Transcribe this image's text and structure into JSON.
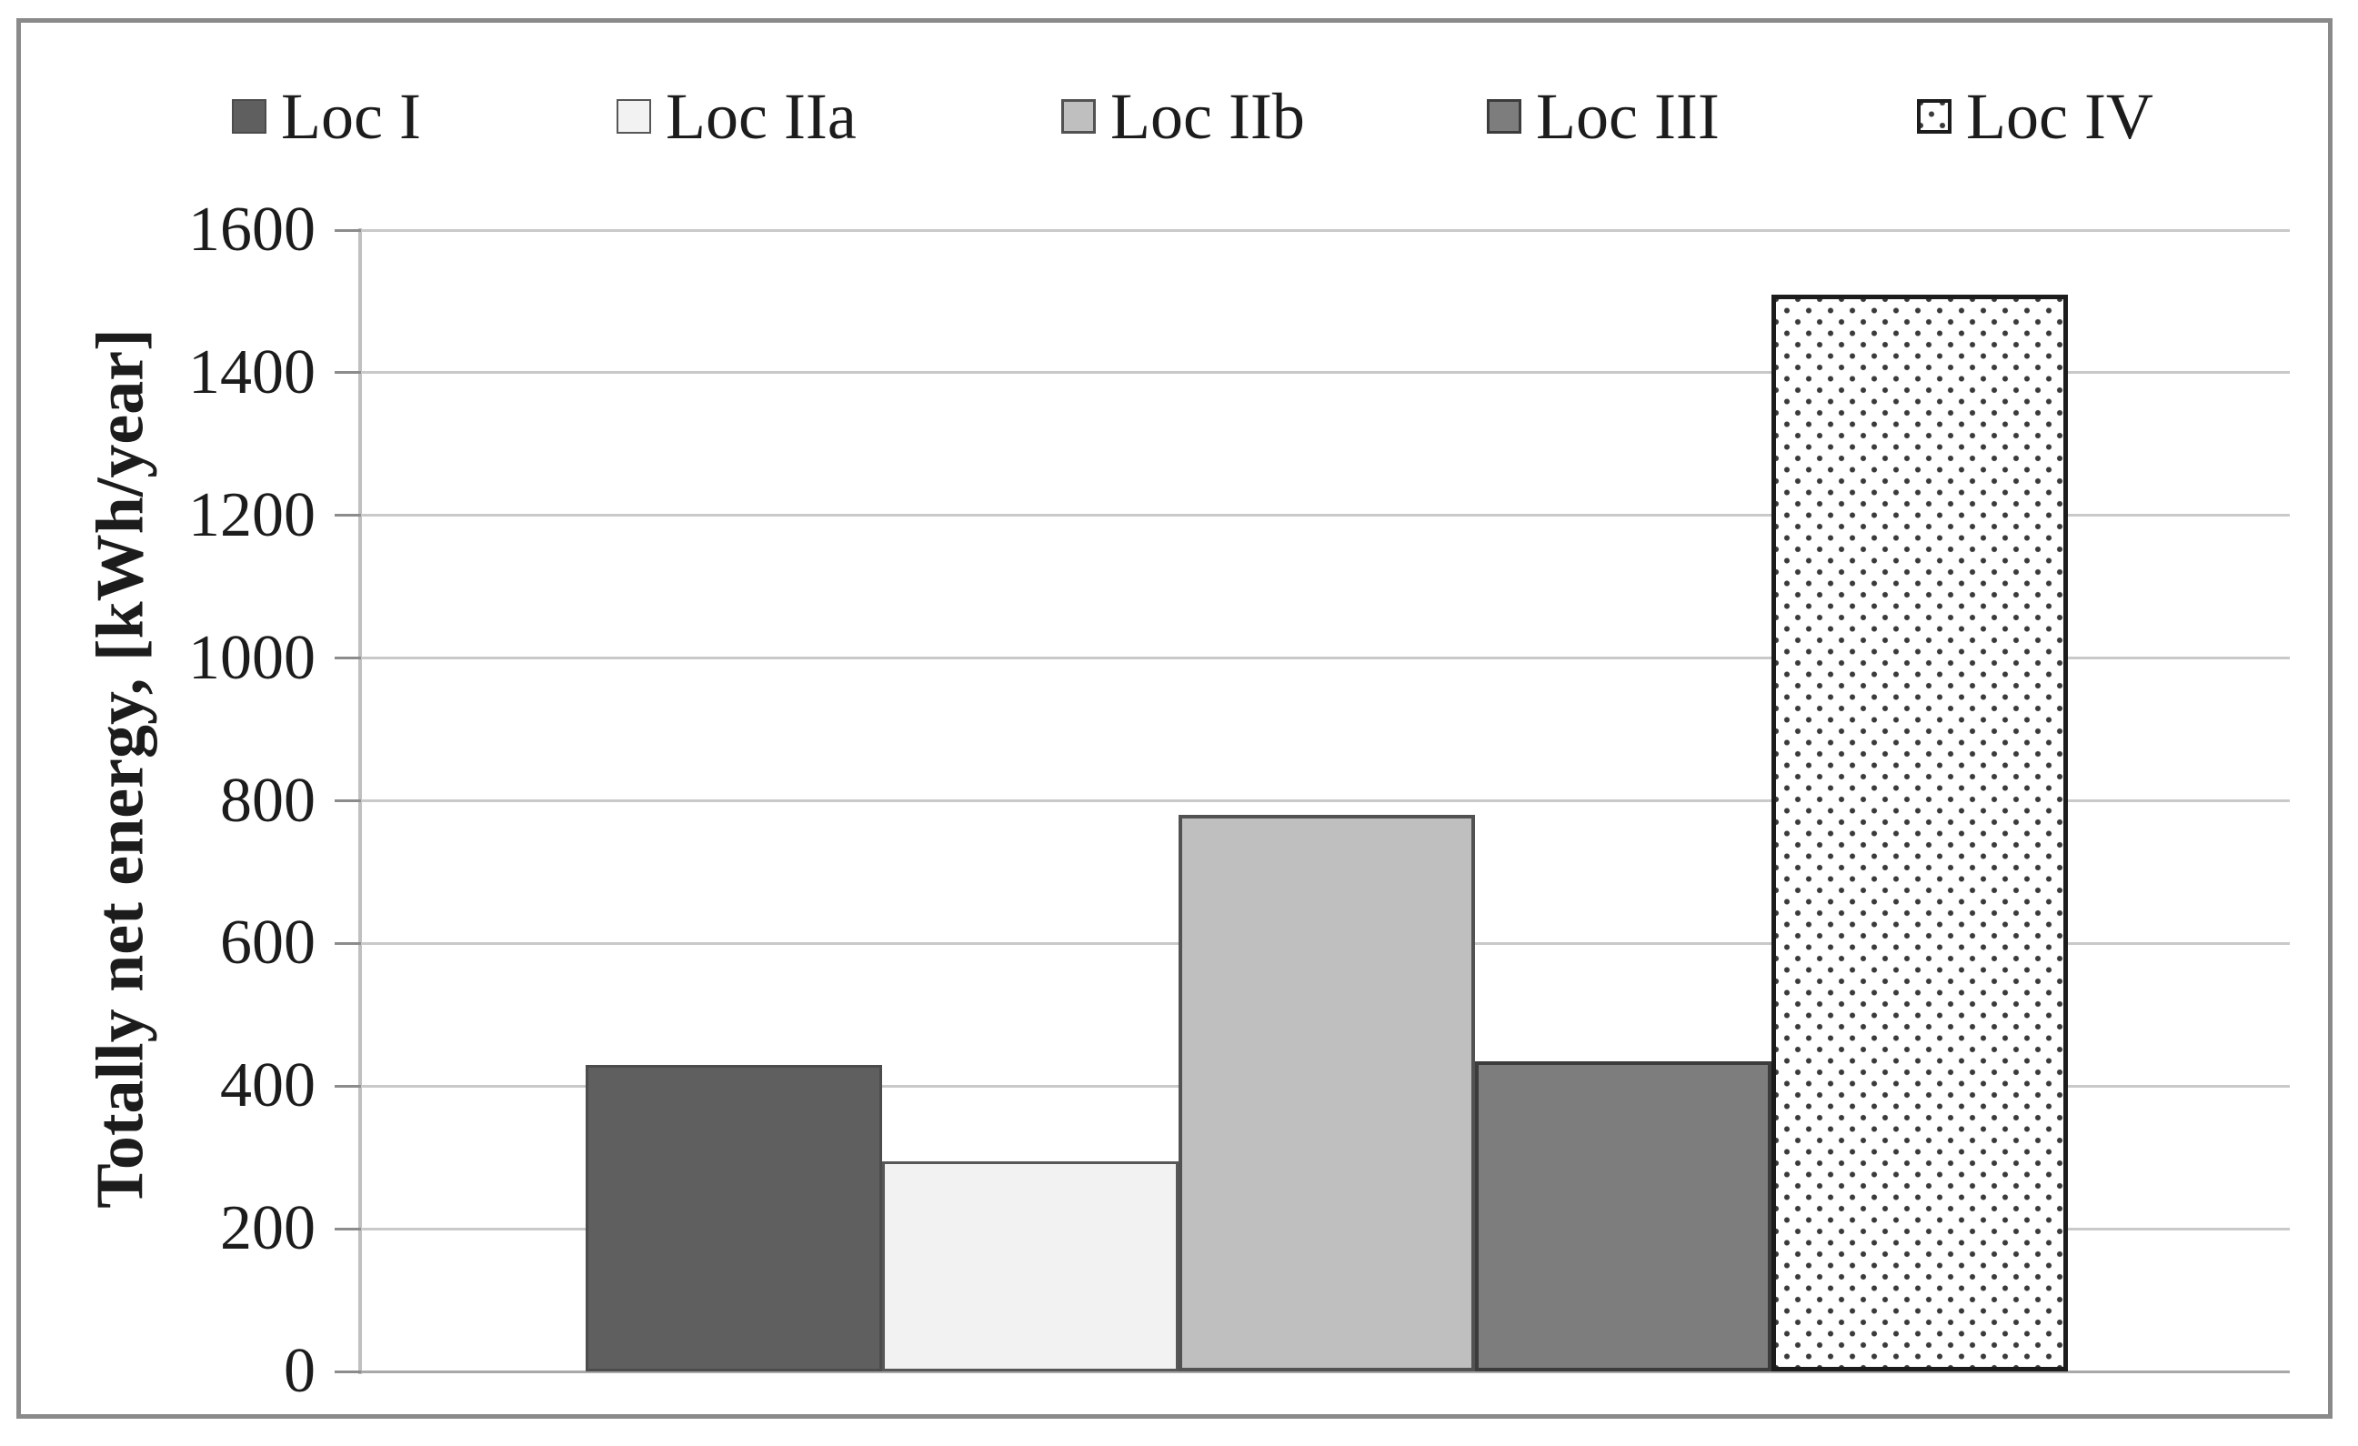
{
  "figure": {
    "border_color": "#8a8a8a",
    "background": "#ffffff"
  },
  "legend": {
    "position": "top",
    "items": [
      {
        "label": "Loc I",
        "series": "loc_i"
      },
      {
        "label": "Loc IIa",
        "series": "loc_iia"
      },
      {
        "label": "Loc IIb",
        "series": "loc_iib"
      },
      {
        "label": "Loc III",
        "series": "loc_iii"
      },
      {
        "label": "Loc IV",
        "series": "loc_iv"
      }
    ]
  },
  "y_axis": {
    "title": "Totally net energy, [kWh/year]",
    "tick_values": [
      0,
      200,
      400,
      600,
      800,
      1000,
      1200,
      1400,
      1600
    ]
  },
  "chart_data": {
    "type": "bar",
    "title": "",
    "xlabel": "",
    "ylabel": "Totally net energy, [kWh/year]",
    "categories": [
      "Loc I",
      "Loc IIa",
      "Loc IIb",
      "Loc III",
      "Loc IV"
    ],
    "values": [
      430,
      295,
      780,
      435,
      1510
    ],
    "ylim": [
      0,
      1600
    ],
    "ytick_step": 200,
    "grid": "horizontal",
    "legend_position": "top",
    "series_styles": [
      {
        "name": "Loc I",
        "fill": "#5f5f5f",
        "border": "#4c4c4c",
        "border_px": 3,
        "pattern": "solid"
      },
      {
        "name": "Loc IIa",
        "fill": "#f2f2f2",
        "border": "#575757",
        "border_px": 3,
        "pattern": "solid"
      },
      {
        "name": "Loc IIb",
        "fill": "#bfbfbf",
        "border": "#525252",
        "border_px": 4,
        "pattern": "solid"
      },
      {
        "name": "Loc III",
        "fill": "#7d7d7d",
        "border": "#3c3c3c",
        "border_px": 4,
        "pattern": "solid"
      },
      {
        "name": "Loc IV",
        "fill": "#ffffff",
        "border": "#1c1c1c",
        "border_px": 5,
        "pattern": "dotted"
      }
    ],
    "gridline_color": "#c9c9c9",
    "axis_line_color": "#c0c0c0",
    "tick_color": "#8c8c8c",
    "text_color": "#1c1c1c"
  }
}
